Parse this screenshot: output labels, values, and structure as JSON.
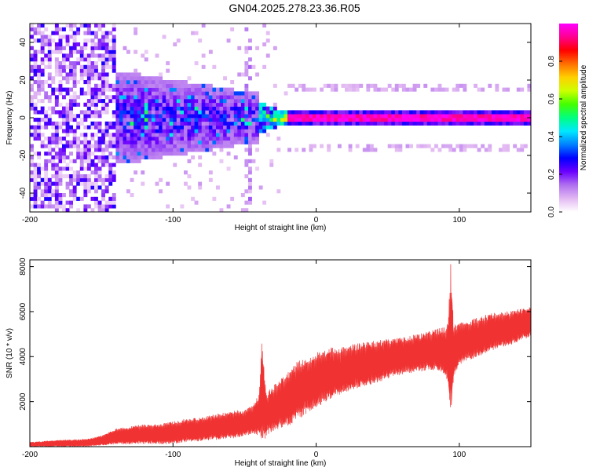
{
  "figure": {
    "title": "GN04.2025.278.23.36.R05"
  },
  "chart_data": [
    {
      "type": "heatmap",
      "title": "GN04.2025.278.23.36.R05",
      "xlabel": "Height of straight line (km)",
      "ylabel": "Frequency (Hz)",
      "xlim": [
        -200,
        150
      ],
      "ylim": [
        -50,
        50
      ],
      "xticks": [
        -200,
        -100,
        0,
        100
      ],
      "yticks": [
        -40,
        -20,
        0,
        20,
        40
      ],
      "colorbar": {
        "label": "Normalized spectral amplitude",
        "range": [
          0,
          1
        ],
        "ticks": [
          0,
          0.2,
          0.4,
          0.6,
          0.8
        ],
        "colors": [
          "#ffffff",
          "#e2b8f2",
          "#b070f0",
          "#6b00ff",
          "#0000ff",
          "#0080ff",
          "#00e8ff",
          "#00ff80",
          "#44ff00",
          "#ccff00",
          "#ffd000",
          "#ff7000",
          "#ff0000",
          "#ff0090",
          "#ff00ff"
        ]
      },
      "features": {
        "tone_frequency_hz": 0,
        "tone_onset_height_km": -40,
        "sidebands_hz": [
          16,
          -16
        ],
        "sideband_range_km": [
          -20,
          150
        ],
        "broadband_noise_range_km": [
          -200,
          -140
        ],
        "vertical_noise_band_km": [
          -50,
          -45
        ]
      },
      "grid": false,
      "legend": "none"
    },
    {
      "type": "line",
      "xlabel": "Height of straight line (km)",
      "ylabel": "SNR (10 * v/v)",
      "xlim": [
        -200,
        150
      ],
      "ylim": [
        0,
        8300
      ],
      "xticks": [
        -200,
        -100,
        0,
        100
      ],
      "yticks": [
        2000,
        4000,
        6000,
        8000
      ],
      "color": "#f03232",
      "envelope": {
        "x": [
          -200,
          -180,
          -160,
          -150,
          -140,
          -130,
          -120,
          -110,
          -100,
          -90,
          -80,
          -70,
          -60,
          -50,
          -45,
          -40,
          -38,
          -35,
          -30,
          -25,
          -20,
          -15,
          -10,
          -5,
          0,
          5,
          10,
          20,
          30,
          40,
          50,
          60,
          70,
          80,
          88,
          92,
          94,
          96,
          100,
          110,
          120,
          130,
          140,
          150
        ],
        "lower": [
          0,
          0,
          0,
          50,
          100,
          100,
          120,
          100,
          120,
          200,
          250,
          300,
          350,
          450,
          550,
          500,
          100,
          450,
          700,
          800,
          900,
          1100,
          1300,
          1500,
          1700,
          1900,
          2100,
          2400,
          2600,
          2800,
          3000,
          3200,
          3300,
          3400,
          3300,
          2800,
          900,
          3000,
          3600,
          3900,
          4200,
          4400,
          4600,
          4900
        ],
        "upper": [
          200,
          300,
          350,
          500,
          800,
          900,
          1000,
          1000,
          1150,
          1250,
          1300,
          1450,
          1600,
          1650,
          1800,
          2300,
          4800,
          2400,
          2700,
          3000,
          3300,
          3700,
          3900,
          4000,
          4200,
          4300,
          4400,
          4500,
          4600,
          4700,
          4800,
          4900,
          5000,
          5150,
          5300,
          5500,
          8300,
          5400,
          5500,
          5700,
          5900,
          6000,
          6100,
          6200
        ]
      },
      "grid": false,
      "legend": "none"
    }
  ]
}
